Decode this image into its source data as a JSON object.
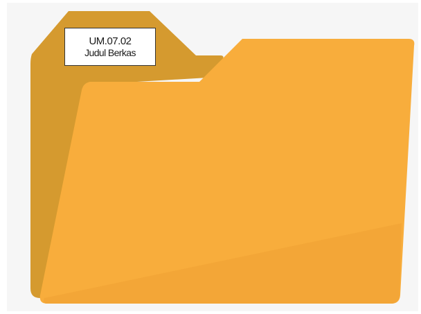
{
  "colors": {
    "background": "#f6f6f6",
    "folder_back": "#d59a2f",
    "folder_front": "#f8ad3c",
    "folder_front_shade": "#f3a637",
    "label_background": "#ffffff",
    "label_border": "#333333"
  },
  "icons": {
    "folder": "folder-icon"
  },
  "label": {
    "code": "UM.07.02",
    "title": "Judul Berkas"
  }
}
